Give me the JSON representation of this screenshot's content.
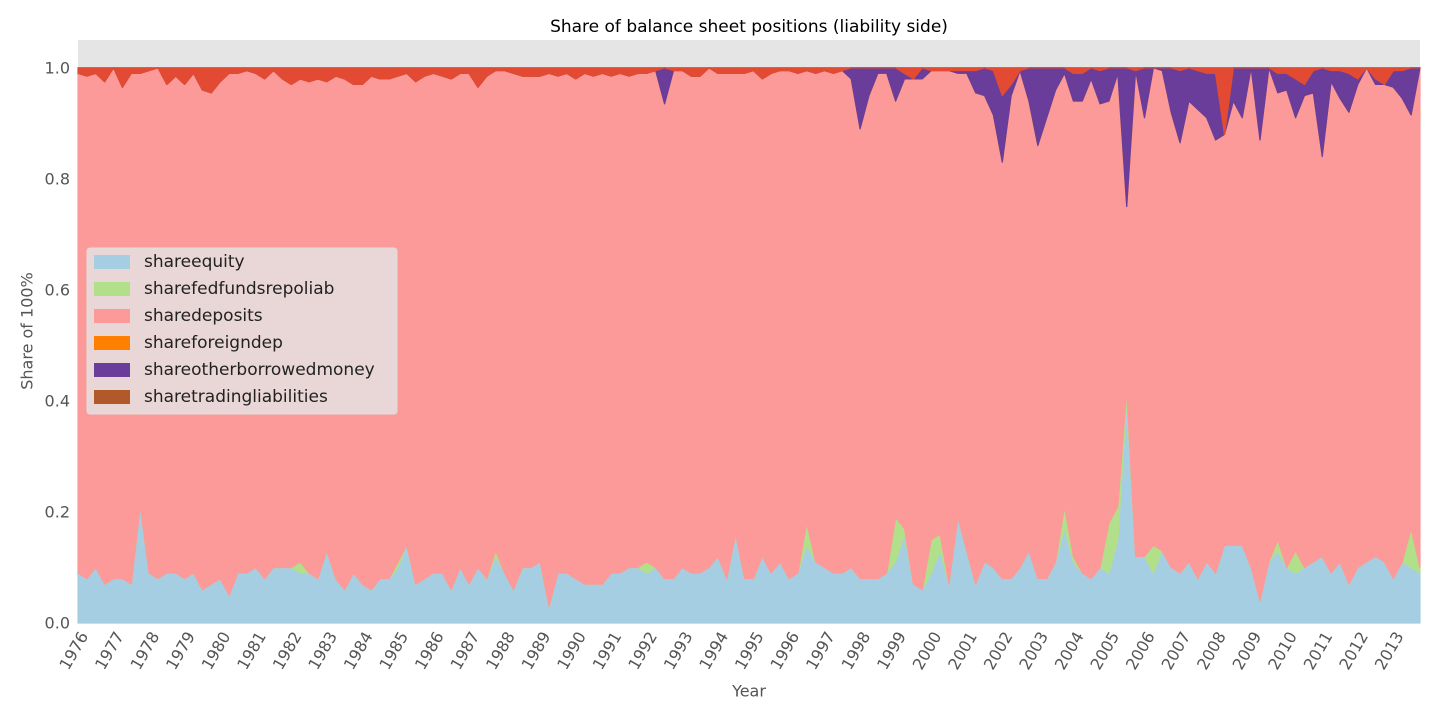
{
  "chart_data": {
    "type": "stacked-area",
    "title": "Share of balance sheet positions (liability side)",
    "x_label": "Year",
    "y_label": "Share of 100%",
    "xlim": [
      1976,
      2013.75
    ],
    "ylim": [
      0,
      1.05
    ],
    "yticks": [
      {
        "value": 0,
        "label": "0.0"
      },
      {
        "value": 0.2,
        "label": "0.2"
      },
      {
        "value": 0.4,
        "label": "0.4"
      },
      {
        "value": 0.6,
        "label": "0.6"
      },
      {
        "value": 0.8,
        "label": "0.8"
      },
      {
        "value": 1,
        "label": "1.0"
      }
    ],
    "xticks": [
      1976,
      1977,
      1978,
      1979,
      1980,
      1981,
      1982,
      1983,
      1984,
      1985,
      1986,
      1987,
      1988,
      1989,
      1990,
      1991,
      1992,
      1993,
      1994,
      1995,
      1996,
      1997,
      1998,
      1999,
      2000,
      2001,
      2002,
      2003,
      2004,
      2005,
      2006,
      2007,
      2008,
      2009,
      2010,
      2011,
      2012,
      2013
    ],
    "legend": "center-left",
    "x": [
      1976,
      1976.25,
      1976.5,
      1976.75,
      1977,
      1977.25,
      1977.5,
      1977.75,
      1978,
      1978.25,
      1978.5,
      1978.75,
      1979,
      1979.25,
      1979.5,
      1979.75,
      1980,
      1980.25,
      1980.5,
      1980.75,
      1981,
      1981.25,
      1981.5,
      1981.75,
      1982,
      1982.25,
      1982.5,
      1982.75,
      1983,
      1983.25,
      1983.5,
      1983.75,
      1984,
      1984.25,
      1984.5,
      1984.75,
      1985,
      1985.25,
      1985.5,
      1985.75,
      1986,
      1986.25,
      1986.5,
      1986.75,
      1987,
      1987.25,
      1987.5,
      1987.75,
      1988,
      1988.25,
      1988.5,
      1988.75,
      1989,
      1989.25,
      1989.5,
      1989.75,
      1990,
      1990.25,
      1990.5,
      1990.75,
      1991,
      1991.25,
      1991.5,
      1991.75,
      1992,
      1992.25,
      1992.5,
      1992.75,
      1993,
      1993.25,
      1993.5,
      1993.75,
      1994,
      1994.25,
      1994.5,
      1994.75,
      1995,
      1995.25,
      1995.5,
      1995.75,
      1996,
      1996.25,
      1996.5,
      1996.75,
      1997,
      1997.25,
      1997.5,
      1997.75,
      1998,
      1998.25,
      1998.5,
      1998.75,
      1999,
      1999.25,
      1999.5,
      1999.75,
      2000,
      2000.25,
      2000.5,
      2000.75,
      2001,
      2001.25,
      2001.5,
      2001.75,
      2002,
      2002.25,
      2002.5,
      2002.75,
      2003,
      2003.25,
      2003.5,
      2003.75,
      2004,
      2004.25,
      2004.5,
      2004.75,
      2005,
      2005.25,
      2005.5,
      2005.75,
      2006,
      2006.25,
      2006.5,
      2006.75,
      2007,
      2007.25,
      2007.5,
      2007.75,
      2008,
      2008.25,
      2008.5,
      2008.75,
      2009,
      2009.25,
      2009.5,
      2009.75,
      2010,
      2010.25,
      2010.5,
      2010.75,
      2011,
      2011.25,
      2011.5,
      2011.75,
      2012,
      2012.25,
      2012.5,
      2012.75,
      2013,
      2013.25,
      2013.5,
      2013.75
    ],
    "series": [
      {
        "name": "shareequity",
        "color": "#a6cee3",
        "values": [
          0.09,
          0.08,
          0.1,
          0.07,
          0.08,
          0.08,
          0.07,
          0.21,
          0.09,
          0.08,
          0.09,
          0.09,
          0.08,
          0.09,
          0.06,
          0.07,
          0.08,
          0.05,
          0.09,
          0.09,
          0.1,
          0.08,
          0.1,
          0.1,
          0.1,
          0.09,
          0.09,
          0.08,
          0.13,
          0.08,
          0.06,
          0.09,
          0.07,
          0.06,
          0.08,
          0.08,
          0.1,
          0.14,
          0.07,
          0.08,
          0.09,
          0.09,
          0.06,
          0.1,
          0.07,
          0.1,
          0.08,
          0.12,
          0.09,
          0.06,
          0.1,
          0.1,
          0.11,
          0.03,
          0.09,
          0.09,
          0.08,
          0.07,
          0.07,
          0.07,
          0.09,
          0.09,
          0.1,
          0.1,
          0.09,
          0.1,
          0.08,
          0.08,
          0.1,
          0.09,
          0.09,
          0.1,
          0.12,
          0.08,
          0.16,
          0.08,
          0.08,
          0.12,
          0.09,
          0.11,
          0.08,
          0.09,
          0.14,
          0.11,
          0.1,
          0.09,
          0.09,
          0.1,
          0.08,
          0.08,
          0.08,
          0.09,
          0.11,
          0.16,
          0.07,
          0.06,
          0.09,
          0.13,
          0.07,
          0.19,
          0.13,
          0.07,
          0.11,
          0.1,
          0.08,
          0.08,
          0.1,
          0.13,
          0.08,
          0.08,
          0.11,
          0.17,
          0.11,
          0.09,
          0.08,
          0.1,
          0.09,
          0.15,
          0.4,
          0.12,
          0.12,
          0.09,
          0.13,
          0.1,
          0.09,
          0.11,
          0.08,
          0.11,
          0.09,
          0.14,
          0.14,
          0.14,
          0.1,
          0.04,
          0.11,
          0.13,
          0.1,
          0.09,
          0.1,
          0.11,
          0.12,
          0.09,
          0.11,
          0.07,
          0.1,
          0.11,
          0.12,
          0.11,
          0.08,
          0.11,
          0.1,
          0.09
        ]
      },
      {
        "name": "sharefedfundsrepoliab",
        "color": "#b2df8a",
        "values": [
          0,
          0,
          0,
          0,
          0,
          0,
          0,
          0,
          0,
          0,
          0,
          0,
          0,
          0,
          0,
          0,
          0,
          0,
          0,
          0,
          0,
          0,
          0,
          0,
          0,
          0.02,
          0,
          0,
          0,
          0,
          0,
          0,
          0,
          0,
          0,
          0,
          0.01,
          0,
          0,
          0,
          0,
          0,
          0,
          0,
          0,
          0,
          0,
          0.01,
          0,
          0,
          0,
          0,
          0,
          0,
          0,
          0,
          0,
          0,
          0,
          0,
          0,
          0,
          0,
          0,
          0.02,
          0,
          0,
          0,
          0,
          0,
          0,
          0,
          0,
          0,
          0,
          0,
          0,
          0,
          0,
          0,
          0,
          0,
          0.04,
          0,
          0,
          0,
          0,
          0,
          0,
          0,
          0,
          0,
          0.08,
          0.01,
          0,
          0,
          0.06,
          0.03,
          0,
          0,
          0,
          0,
          0,
          0,
          0,
          0,
          0,
          0,
          0,
          0,
          0,
          0.04,
          0.01,
          0,
          0,
          0,
          0.09,
          0.06,
          0.02,
          0,
          0,
          0.05,
          0,
          0,
          0,
          0,
          0,
          0,
          0,
          0,
          0,
          0,
          0,
          0,
          0,
          0.02,
          0,
          0.04,
          0,
          0,
          0,
          0,
          0,
          0,
          0,
          0,
          0,
          0,
          0,
          0,
          0.07,
          0.01
        ]
      },
      {
        "name": "sharedeposits",
        "color": "#fb9a99",
        "values": [
          0.9,
          0.905,
          0.89,
          0.905,
          0.92,
          0.885,
          0.92,
          0.78,
          0.905,
          0.92,
          0.88,
          0.895,
          0.89,
          0.9,
          0.9,
          0.885,
          0.895,
          0.94,
          0.9,
          0.905,
          0.89,
          0.9,
          0.895,
          0.88,
          0.87,
          0.87,
          0.885,
          0.9,
          0.845,
          0.905,
          0.92,
          0.88,
          0.9,
          0.925,
          0.9,
          0.9,
          0.875,
          0.85,
          0.905,
          0.905,
          0.9,
          0.895,
          0.92,
          0.89,
          0.92,
          0.865,
          0.905,
          0.865,
          0.905,
          0.93,
          0.885,
          0.885,
          0.875,
          0.96,
          0.895,
          0.9,
          0.9,
          0.92,
          0.915,
          0.92,
          0.895,
          0.9,
          0.885,
          0.89,
          0.88,
          0.895,
          0.855,
          0.915,
          0.895,
          0.895,
          0.895,
          0.9,
          0.87,
          0.91,
          0.83,
          0.91,
          0.915,
          0.86,
          0.9,
          0.885,
          0.915,
          0.9,
          0.815,
          0.88,
          0.895,
          0.9,
          0.905,
          0.88,
          0.81,
          0.87,
          0.91,
          0.9,
          0.75,
          0.81,
          0.91,
          0.92,
          0.845,
          0.835,
          0.925,
          0.8,
          0.86,
          0.885,
          0.84,
          0.815,
          0.75,
          0.87,
          0.895,
          0.81,
          0.78,
          0.83,
          0.85,
          0.78,
          0.82,
          0.85,
          0.9,
          0.835,
          0.76,
          0.78,
          0.33,
          0.875,
          0.79,
          0.86,
          0.865,
          0.82,
          0.775,
          0.83,
          0.845,
          0.8,
          0.78,
          0.74,
          0.8,
          0.77,
          0.9,
          0.83,
          0.89,
          0.805,
          0.86,
          0.78,
          0.85,
          0.845,
          0.72,
          0.885,
          0.835,
          0.85,
          0.87,
          0.89,
          0.85,
          0.86,
          0.885,
          0.835,
          0.745,
          0.9
        ]
      },
      {
        "name": "shareforeigndep",
        "color": "#ff7f00",
        "values": [
          0,
          0,
          0,
          0,
          0,
          0,
          0,
          0,
          0,
          0,
          0,
          0,
          0,
          0,
          0,
          0,
          0,
          0,
          0,
          0,
          0,
          0,
          0,
          0,
          0,
          0,
          0,
          0,
          0,
          0,
          0,
          0,
          0,
          0,
          0,
          0,
          0,
          0,
          0,
          0,
          0,
          0,
          0,
          0,
          0,
          0,
          0,
          0,
          0,
          0,
          0,
          0,
          0,
          0,
          0,
          0,
          0,
          0,
          0,
          0,
          0,
          0,
          0,
          0,
          0,
          0,
          0,
          0,
          0,
          0,
          0,
          0,
          0,
          0,
          0,
          0,
          0,
          0,
          0,
          0,
          0,
          0,
          0,
          0,
          0,
          0,
          0,
          0,
          0,
          0,
          0,
          0,
          0,
          0,
          0,
          0,
          0,
          0,
          0,
          0,
          0,
          0,
          0,
          0,
          0,
          0,
          0,
          0,
          0,
          0,
          0,
          0,
          0,
          0,
          0,
          0,
          0,
          0,
          0,
          0,
          0,
          0,
          0,
          0,
          0,
          0,
          0,
          0,
          0,
          0,
          0,
          0,
          0,
          0,
          0,
          0,
          0,
          0,
          0,
          0,
          0,
          0,
          0,
          0,
          0,
          0,
          0,
          0,
          0,
          0,
          0,
          0
        ]
      },
      {
        "name": "shareotherborrowedmoney",
        "color": "#6a3d9a",
        "values": [
          0,
          0,
          0,
          0,
          0,
          0,
          0,
          0,
          0,
          0,
          0,
          0,
          0,
          0,
          0,
          0,
          0,
          0,
          0,
          0,
          0,
          0,
          0,
          0,
          0,
          0,
          0,
          0,
          0,
          0,
          0,
          0,
          0,
          0,
          0,
          0,
          0,
          0,
          0,
          0,
          0,
          0,
          0,
          0,
          0,
          0,
          0,
          0,
          0,
          0,
          0,
          0,
          0,
          0,
          0,
          0,
          0,
          0,
          0,
          0,
          0,
          0,
          0,
          0,
          0,
          0,
          0.065,
          0,
          0,
          0,
          0,
          0,
          0,
          0,
          0,
          0,
          0,
          0,
          0,
          0,
          0,
          0,
          0,
          0,
          0,
          0,
          0,
          0.02,
          0.11,
          0.05,
          0.01,
          0.01,
          0.06,
          0.01,
          0,
          0.02,
          0,
          0,
          0,
          0.005,
          0.005,
          0.04,
          0.05,
          0.08,
          0.12,
          0.02,
          0,
          0.06,
          0.14,
          0.09,
          0.04,
          0.01,
          0.05,
          0.05,
          0.02,
          0.06,
          0.06,
          0.01,
          0.25,
          0,
          0.09,
          0,
          0.005,
          0.08,
          0.13,
          0.06,
          0.07,
          0.08,
          0.12,
          0,
          0.06,
          0.09,
          0,
          0.13,
          0,
          0.035,
          0.03,
          0.07,
          0.02,
          0.04,
          0.16,
          0.02,
          0.05,
          0.07,
          0.01,
          0,
          0.01,
          0,
          0.03,
          0.05,
          0.085,
          0
        ]
      },
      {
        "name": "sharetradingliabilities",
        "color": "#b15928",
        "values": [
          0,
          0,
          0,
          0,
          0,
          0,
          0,
          0,
          0,
          0,
          0,
          0,
          0,
          0,
          0,
          0,
          0,
          0,
          0,
          0,
          0,
          0,
          0,
          0,
          0,
          0,
          0,
          0,
          0,
          0,
          0,
          0,
          0,
          0,
          0,
          0,
          0,
          0,
          0,
          0,
          0,
          0,
          0,
          0,
          0,
          0,
          0,
          0,
          0,
          0,
          0,
          0,
          0,
          0,
          0,
          0,
          0,
          0,
          0,
          0,
          0,
          0,
          0,
          0,
          0,
          0,
          0,
          0,
          0,
          0,
          0,
          0,
          0,
          0,
          0,
          0,
          0,
          0,
          0,
          0,
          0,
          0,
          0,
          0,
          0,
          0,
          0,
          0,
          0,
          0,
          0,
          0,
          0,
          0,
          0,
          0,
          0,
          0,
          0,
          0,
          0,
          0,
          0,
          0,
          0,
          0,
          0,
          0,
          0,
          0,
          0,
          0,
          0,
          0,
          0,
          0,
          0,
          0,
          0,
          0,
          0,
          0,
          0,
          0,
          0,
          0,
          0,
          0,
          0,
          0,
          0,
          0,
          0,
          0,
          0,
          0,
          0,
          0,
          0,
          0,
          0,
          0,
          0,
          0,
          0,
          0,
          0,
          0,
          0,
          0,
          0,
          0
        ]
      },
      {
        "color": "#e34a33",
        "values": [
          0.01,
          0.015,
          0.01,
          0.025,
          0,
          0.035,
          0.01,
          0.01,
          0.005,
          0,
          0.03,
          0.015,
          0.03,
          0.01,
          0.04,
          0.045,
          0.025,
          0.01,
          0.01,
          0.005,
          0.01,
          0.02,
          0.005,
          0.02,
          0.03,
          0.02,
          0.025,
          0.02,
          0.025,
          0.015,
          0.02,
          0.03,
          0.03,
          0.015,
          0.02,
          0.02,
          0.015,
          0.01,
          0.025,
          0.015,
          0.01,
          0.015,
          0.02,
          0.01,
          0.01,
          0.035,
          0.015,
          0.005,
          0.005,
          0.01,
          0.015,
          0.015,
          0.015,
          0.01,
          0.015,
          0.01,
          0.02,
          0.01,
          0.015,
          0.01,
          0.015,
          0.01,
          0.015,
          0.01,
          0.01,
          0.005,
          0,
          0.005,
          0.005,
          0.015,
          0.015,
          0,
          0.01,
          0.01,
          0.01,
          0.01,
          0.005,
          0.02,
          0.01,
          0.005,
          0.005,
          0.01,
          0.005,
          0.01,
          0.005,
          0.01,
          0.005,
          0,
          0,
          0,
          0,
          0,
          0,
          0.01,
          0.02,
          0,
          0.005,
          0.005,
          0.005,
          0.005,
          0.005,
          0.005,
          0,
          0.005,
          0.05,
          0.03,
          0.005,
          0,
          0,
          0,
          0,
          0,
          0.01,
          0.01,
          0,
          0.005,
          0,
          0,
          0,
          0.005,
          0,
          0,
          0,
          0,
          0.005,
          0,
          0.005,
          0.01,
          0.01,
          0.12,
          0,
          0,
          0,
          0,
          0,
          0.01,
          0.01,
          0.02,
          0.03,
          0.005,
          0,
          0.005,
          0.005,
          0.01,
          0.02,
          0,
          0.02,
          0.03,
          0.005,
          0.005,
          0,
          0
        ]
      }
    ]
  }
}
